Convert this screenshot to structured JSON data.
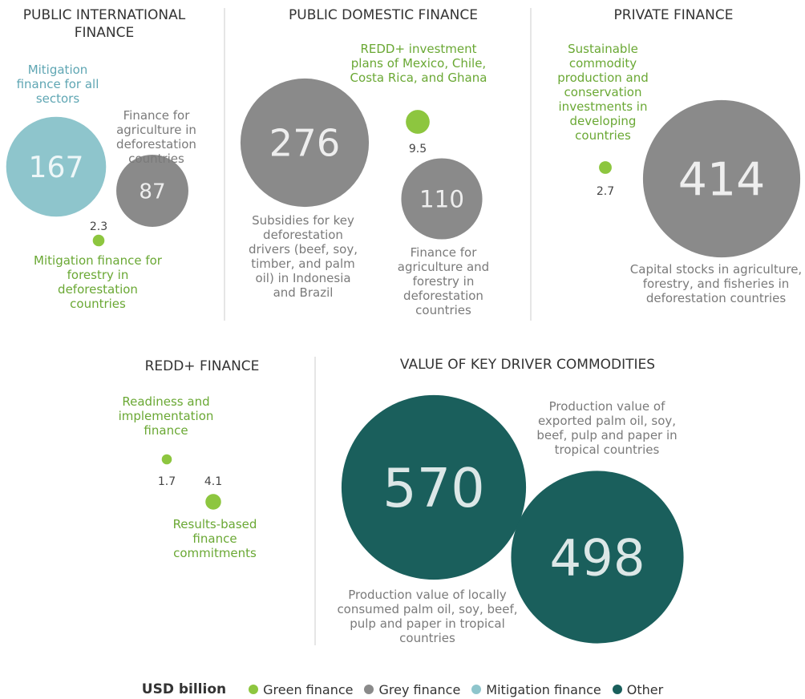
{
  "chart_data": {
    "type": "bubble",
    "panels": [
      {
        "title": "PUBLIC INTERNATIONAL FINANCE",
        "bubbles": [
          {
            "value": 167,
            "label": "Mitigation finance for all sectors",
            "color": "#8ec5cc",
            "label_color": "#5fa6b3"
          },
          {
            "value": 87,
            "label": "Finance for agriculture in deforestation countries",
            "color": "#8a8a8a",
            "label_color": "#7a7a7a"
          },
          {
            "value": 2.3,
            "label": "Mitigation finance for forestry in deforestation countries",
            "color": "#8dc63f",
            "label_color": "#6aa834"
          }
        ]
      },
      {
        "title": "PUBLIC DOMESTIC FINANCE",
        "bubbles": [
          {
            "value": 276,
            "label": "Subsidies for key deforestation drivers (beef, soy, timber, and palm oil) in Indonesia and Brazil",
            "color": "#8a8a8a",
            "label_color": "#7a7a7a"
          },
          {
            "value": 9.5,
            "label": "REDD+ investment plans of Mexico, Chile, Costa Rica, and Ghana",
            "color": "#8dc63f",
            "label_color": "#6aa834"
          },
          {
            "value": 110,
            "label": "Finance for agriculture and forestry in deforestation countries",
            "color": "#8a8a8a",
            "label_color": "#7a7a7a"
          }
        ]
      },
      {
        "title": "PRIVATE FINANCE",
        "bubbles": [
          {
            "value": 2.7,
            "label": "Sustainable commodity production and conservation investments in developing countries",
            "color": "#8dc63f",
            "label_color": "#6aa834"
          },
          {
            "value": 414,
            "label": "Capital stocks in agriculture, forestry, and fisheries in deforestation countries",
            "color": "#8a8a8a",
            "label_color": "#7a7a7a"
          }
        ]
      },
      {
        "title": "REDD+ FINANCE",
        "bubbles": [
          {
            "value": 1.7,
            "label": "Readiness and implementation finance",
            "color": "#8dc63f",
            "label_color": "#6aa834"
          },
          {
            "value": 4.1,
            "label": "Results-based finance commitments",
            "color": "#8dc63f",
            "label_color": "#6aa834"
          }
        ]
      },
      {
        "title": "VALUE OF KEY DRIVER COMMODITIES",
        "bubbles": [
          {
            "value": 570,
            "label": "Production value of locally consumed palm oil, soy, beef, pulp and paper in tropical countries",
            "color": "#1a5f5c",
            "label_color": "#7a7a7a"
          },
          {
            "value": 498,
            "label": "Production value of exported palm oil, soy, beef, pulp and paper in tropical countries",
            "color": "#1a5f5c",
            "label_color": "#7a7a7a"
          }
        ]
      }
    ],
    "legend": {
      "title": "USD billion",
      "items": [
        {
          "name": "Green finance",
          "color": "#8dc63f"
        },
        {
          "name": "Grey finance",
          "color": "#8a8a8a"
        },
        {
          "name": "Mitigation finance",
          "color": "#8ec5cc"
        },
        {
          "name": "Other",
          "color": "#1a5f5c"
        }
      ]
    }
  }
}
